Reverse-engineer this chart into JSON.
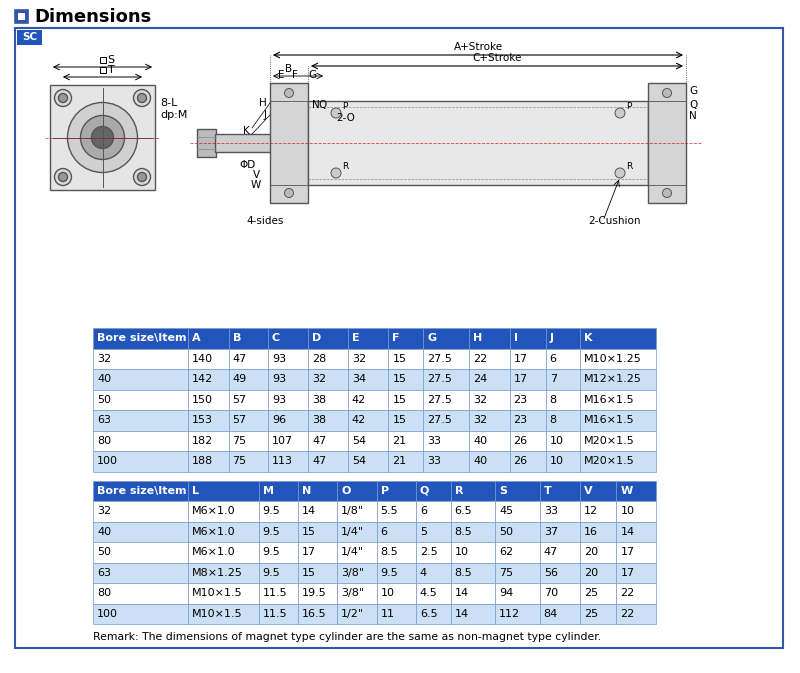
{
  "title": "Dimensions",
  "sc_label": "SC",
  "border_color": "#3355aa",
  "header_bg": "#2255bb",
  "header_fg": "#ffffff",
  "row_alt_color": "#cce0f5",
  "row_color": "#ffffff",
  "table1_headers": [
    "Bore size\\Item",
    "A",
    "B",
    "C",
    "D",
    "E",
    "F",
    "G",
    "H",
    "I",
    "J",
    "K"
  ],
  "table1_data": [
    [
      "32",
      "140",
      "47",
      "93",
      "28",
      "32",
      "15",
      "27.5",
      "22",
      "17",
      "6",
      "M10×1.25"
    ],
    [
      "40",
      "142",
      "49",
      "93",
      "32",
      "34",
      "15",
      "27.5",
      "24",
      "17",
      "7",
      "M12×1.25"
    ],
    [
      "50",
      "150",
      "57",
      "93",
      "38",
      "42",
      "15",
      "27.5",
      "32",
      "23",
      "8",
      "M16×1.5"
    ],
    [
      "63",
      "153",
      "57",
      "96",
      "38",
      "42",
      "15",
      "27.5",
      "32",
      "23",
      "8",
      "M16×1.5"
    ],
    [
      "80",
      "182",
      "75",
      "107",
      "47",
      "54",
      "21",
      "33",
      "40",
      "26",
      "10",
      "M20×1.5"
    ],
    [
      "100",
      "188",
      "75",
      "113",
      "47",
      "54",
      "21",
      "33",
      "40",
      "26",
      "10",
      "M20×1.5"
    ]
  ],
  "table2_headers": [
    "Bore size\\Item",
    "L",
    "M",
    "N",
    "O",
    "P",
    "Q",
    "R",
    "S",
    "T",
    "V",
    "W"
  ],
  "table2_data": [
    [
      "32",
      "M6×1.0",
      "9.5",
      "14",
      "1/8\"",
      "5.5",
      "6",
      "6.5",
      "45",
      "33",
      "12",
      "10"
    ],
    [
      "40",
      "M6×1.0",
      "9.5",
      "15",
      "1/4\"",
      "6",
      "5",
      "8.5",
      "50",
      "37",
      "16",
      "14"
    ],
    [
      "50",
      "M6×1.0",
      "9.5",
      "17",
      "1/4\"",
      "8.5",
      "2.5",
      "10",
      "62",
      "47",
      "20",
      "17"
    ],
    [
      "63",
      "M8×1.25",
      "9.5",
      "15",
      "3/8\"",
      "9.5",
      "4",
      "8.5",
      "75",
      "56",
      "20",
      "17"
    ],
    [
      "80",
      "M10×1.5",
      "11.5",
      "19.5",
      "3/8\"",
      "10",
      "4.5",
      "14",
      "94",
      "70",
      "25",
      "22"
    ],
    [
      "100",
      "M10×1.5",
      "11.5",
      "16.5",
      "1/2\"",
      "11",
      "6.5",
      "14",
      "112",
      "84",
      "25",
      "22"
    ]
  ],
  "remark": "Remark: The dimensions of magnet type cylinder are the same as non-magnet type cylinder."
}
